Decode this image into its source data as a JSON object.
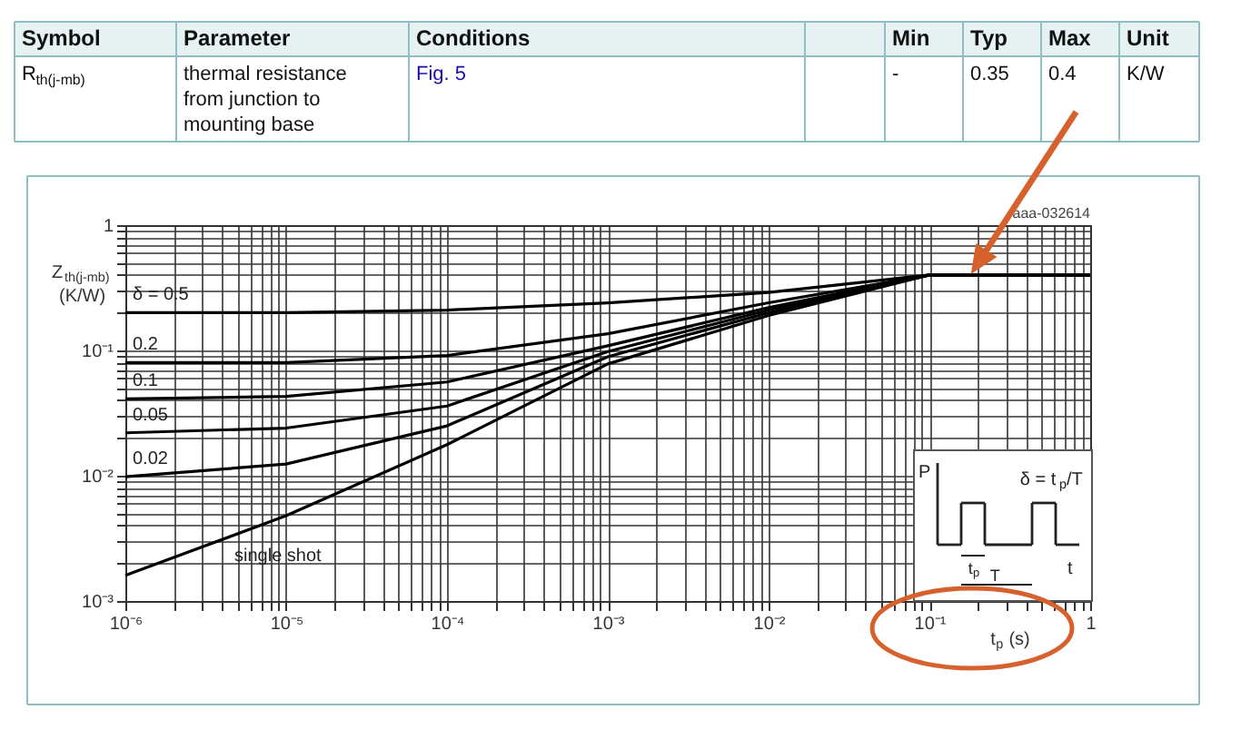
{
  "chart_data": {
    "type": "line",
    "ylabel": "Z$_{th(j-mb)}$ (K/W)",
    "xlabel": "t$_{p}$ (s)",
    "annotations": [
      "Symbol",
      "Parameter",
      "Conditions",
      "Min",
      "Typ",
      "Max",
      "Unit",
      "R$_{th(j-mb)}$",
      "thermal resistance from junction to mounting base",
      "Fig. 5",
      "-",
      "0.35",
      "0.4",
      "K/W",
      "aaa-032614",
      "P",
      "δ = t$_{p}$/T",
      "t$_{p}$",
      "T",
      "t"
    ],
    "log": "xy",
    "grid": true,
    "legend": false,
    "line_style": "solid",
    "marker": "none",
    "xlim": [
      1e-06,
      1
    ],
    "ylim": [
      0.001,
      1
    ],
    "xticks": [
      {
        "value": 1e-06,
        "label": "10⁻⁶"
      },
      {
        "value": 2e-06,
        "label": null
      },
      {
        "value": 3e-06,
        "label": null
      },
      {
        "value": 4e-06,
        "label": null
      },
      {
        "value": 5e-06,
        "label": null
      },
      {
        "value": 6e-06,
        "label": null
      },
      {
        "value": 7e-06,
        "label": null
      },
      {
        "value": 8e-06,
        "label": null
      },
      {
        "value": 9e-06,
        "label": null
      },
      {
        "value": 1e-05,
        "label": "10⁻⁵"
      },
      {
        "value": 2e-05,
        "label": null
      },
      {
        "value": 3e-05,
        "label": null
      },
      {
        "value": 4e-05,
        "label": null
      },
      {
        "value": 5e-05,
        "label": null
      },
      {
        "value": 6e-05,
        "label": null
      },
      {
        "value": 7e-05,
        "label": null
      },
      {
        "value": 8e-05,
        "label": null
      },
      {
        "value": 9e-05,
        "label": null
      },
      {
        "value": 0.0001,
        "label": "10⁻⁴"
      },
      {
        "value": 0.0002,
        "label": null
      },
      {
        "value": 0.0003,
        "label": null
      },
      {
        "value": 0.0004,
        "label": null
      },
      {
        "value": 0.0005,
        "label": null
      },
      {
        "value": 0.0006,
        "label": null
      },
      {
        "value": 0.0007,
        "label": null
      },
      {
        "value": 0.0008,
        "label": null
      },
      {
        "value": 0.0009,
        "label": null
      },
      {
        "value": 0.001,
        "label": "10⁻³"
      },
      {
        "value": 0.002,
        "label": null
      },
      {
        "value": 0.003,
        "label": null
      },
      {
        "value": 0.004,
        "label": null
      },
      {
        "value": 0.005,
        "label": null
      },
      {
        "value": 0.006,
        "label": null
      },
      {
        "value": 0.007,
        "label": null
      },
      {
        "value": 0.008,
        "label": null
      },
      {
        "value": 0.009,
        "label": null
      },
      {
        "value": 0.01,
        "label": "10⁻²"
      },
      {
        "value": 0.02,
        "label": null
      },
      {
        "value": 0.03,
        "label": null
      },
      {
        "value": 0.04,
        "label": null
      },
      {
        "value": 0.05,
        "label": null
      },
      {
        "value": 0.06,
        "label": null
      },
      {
        "value": 0.07,
        "label": null
      },
      {
        "value": 0.08,
        "label": null
      },
      {
        "value": 0.09,
        "label": null
      },
      {
        "value": 0.1,
        "label": "10⁻¹"
      },
      {
        "value": 0.2,
        "label": null
      },
      {
        "value": 0.3,
        "label": null
      },
      {
        "value": 0.4,
        "label": null
      },
      {
        "value": 0.5,
        "label": null
      },
      {
        "value": 0.6,
        "label": null
      },
      {
        "value": 0.7,
        "label": null
      },
      {
        "value": 0.8,
        "label": null
      },
      {
        "value": 0.9,
        "label": null
      },
      1
    ],
    "yticks": [
      {
        "value": 0.001,
        "label": "10⁻³"
      },
      {
        "value": 0.002,
        "label": null
      },
      {
        "value": 0.003,
        "label": null
      },
      {
        "value": 0.004,
        "label": null
      },
      {
        "value": 0.005,
        "label": null
      },
      {
        "value": 0.006,
        "label": null
      },
      {
        "value": 0.007,
        "label": null
      },
      {
        "value": 0.008,
        "label": null
      },
      {
        "value": 0.009,
        "label": null
      },
      {
        "value": 0.01,
        "label": "10⁻²"
      },
      {
        "value": 0.02,
        "label": null
      },
      {
        "value": 0.03,
        "label": null
      },
      {
        "value": 0.04,
        "label": null
      },
      {
        "value": 0.05,
        "label": null
      },
      {
        "value": 0.06,
        "label": null
      },
      {
        "value": 0.07,
        "label": null
      },
      {
        "value": 0.08,
        "label": null
      },
      {
        "value": 0.09,
        "label": null
      },
      {
        "value": 0.1,
        "label": "10⁻¹"
      },
      {
        "value": 0.2,
        "label": null
      },
      {
        "value": 0.3,
        "label": null
      },
      {
        "value": 0.4,
        "label": null
      },
      {
        "value": 0.5,
        "label": null
      },
      {
        "value": 0.6,
        "label": null
      },
      {
        "value": 0.7,
        "label": null
      },
      {
        "value": 0.8,
        "label": null
      },
      {
        "value": 0.9,
        "label": null
      },
      1
    ],
    "x": [
      1e-06,
      1e-05,
      0.0001,
      0.001,
      0.01,
      0.1,
      1
    ],
    "series": [
      {
        "name": "δ = 0.5",
        "color": "#000000",
        "values": [
          0.2,
          0.2,
          0.21,
          0.24,
          0.29,
          0.4,
          0.4
        ]
      },
      {
        "name": "0.2",
        "color": "#000000",
        "values": [
          0.08,
          0.08,
          0.091,
          0.136,
          0.24,
          0.4,
          0.4
        ]
      },
      {
        "name": "0.1",
        "color": "#000000",
        "values": [
          0.041,
          0.043,
          0.056,
          0.109,
          0.22,
          0.4,
          0.4
        ]
      },
      {
        "name": "0.05",
        "color": "#000000",
        "values": [
          0.022,
          0.024,
          0.036,
          0.098,
          0.21,
          0.4,
          0.4
        ]
      },
      {
        "name": "0.02",
        "color": "#000000",
        "values": [
          0.0098,
          0.0124,
          0.025,
          0.089,
          0.2,
          0.4,
          0.4
        ]
      },
      {
        "name": "single shot",
        "color": "#000000",
        "values": [
          0.0016,
          0.0048,
          0.0177,
          0.078,
          0.19,
          0.4,
          0.4
        ]
      }
    ]
  }
}
